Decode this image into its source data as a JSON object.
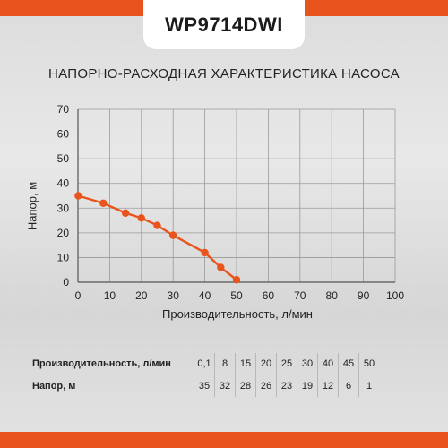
{
  "header": {
    "model": "WP9714DWI"
  },
  "chart_data": {
    "type": "line",
    "title": "НАПОРНО-РАСХОДНАЯ ХАРАКТЕРИСТИКА НАСОСА",
    "xlabel": "Производительность, л/мин",
    "ylabel": "Напор, м",
    "xlim": [
      0,
      100
    ],
    "ylim": [
      0,
      70
    ],
    "xticks": [
      0,
      10,
      20,
      30,
      40,
      50,
      60,
      70,
      80,
      90,
      100
    ],
    "yticks": [
      0,
      10,
      20,
      30,
      40,
      50,
      60,
      70
    ],
    "grid": true,
    "series": [
      {
        "x": [
          0.1,
          8,
          15,
          20,
          25,
          30,
          40,
          45,
          50
        ],
        "y": [
          35,
          32,
          28,
          26,
          23,
          19,
          12,
          6,
          1
        ]
      }
    ],
    "colors": {
      "line": "#e8541c",
      "grid": "#9a9a9a"
    }
  },
  "table": {
    "rows": [
      {
        "label": "Производительность, л/мин",
        "values": [
          "0,1",
          "8",
          "15",
          "20",
          "25",
          "30",
          "40",
          "45",
          "50"
        ]
      },
      {
        "label": "Напор, м",
        "values": [
          "35",
          "32",
          "28",
          "26",
          "23",
          "19",
          "12",
          "6",
          "1"
        ]
      }
    ]
  }
}
